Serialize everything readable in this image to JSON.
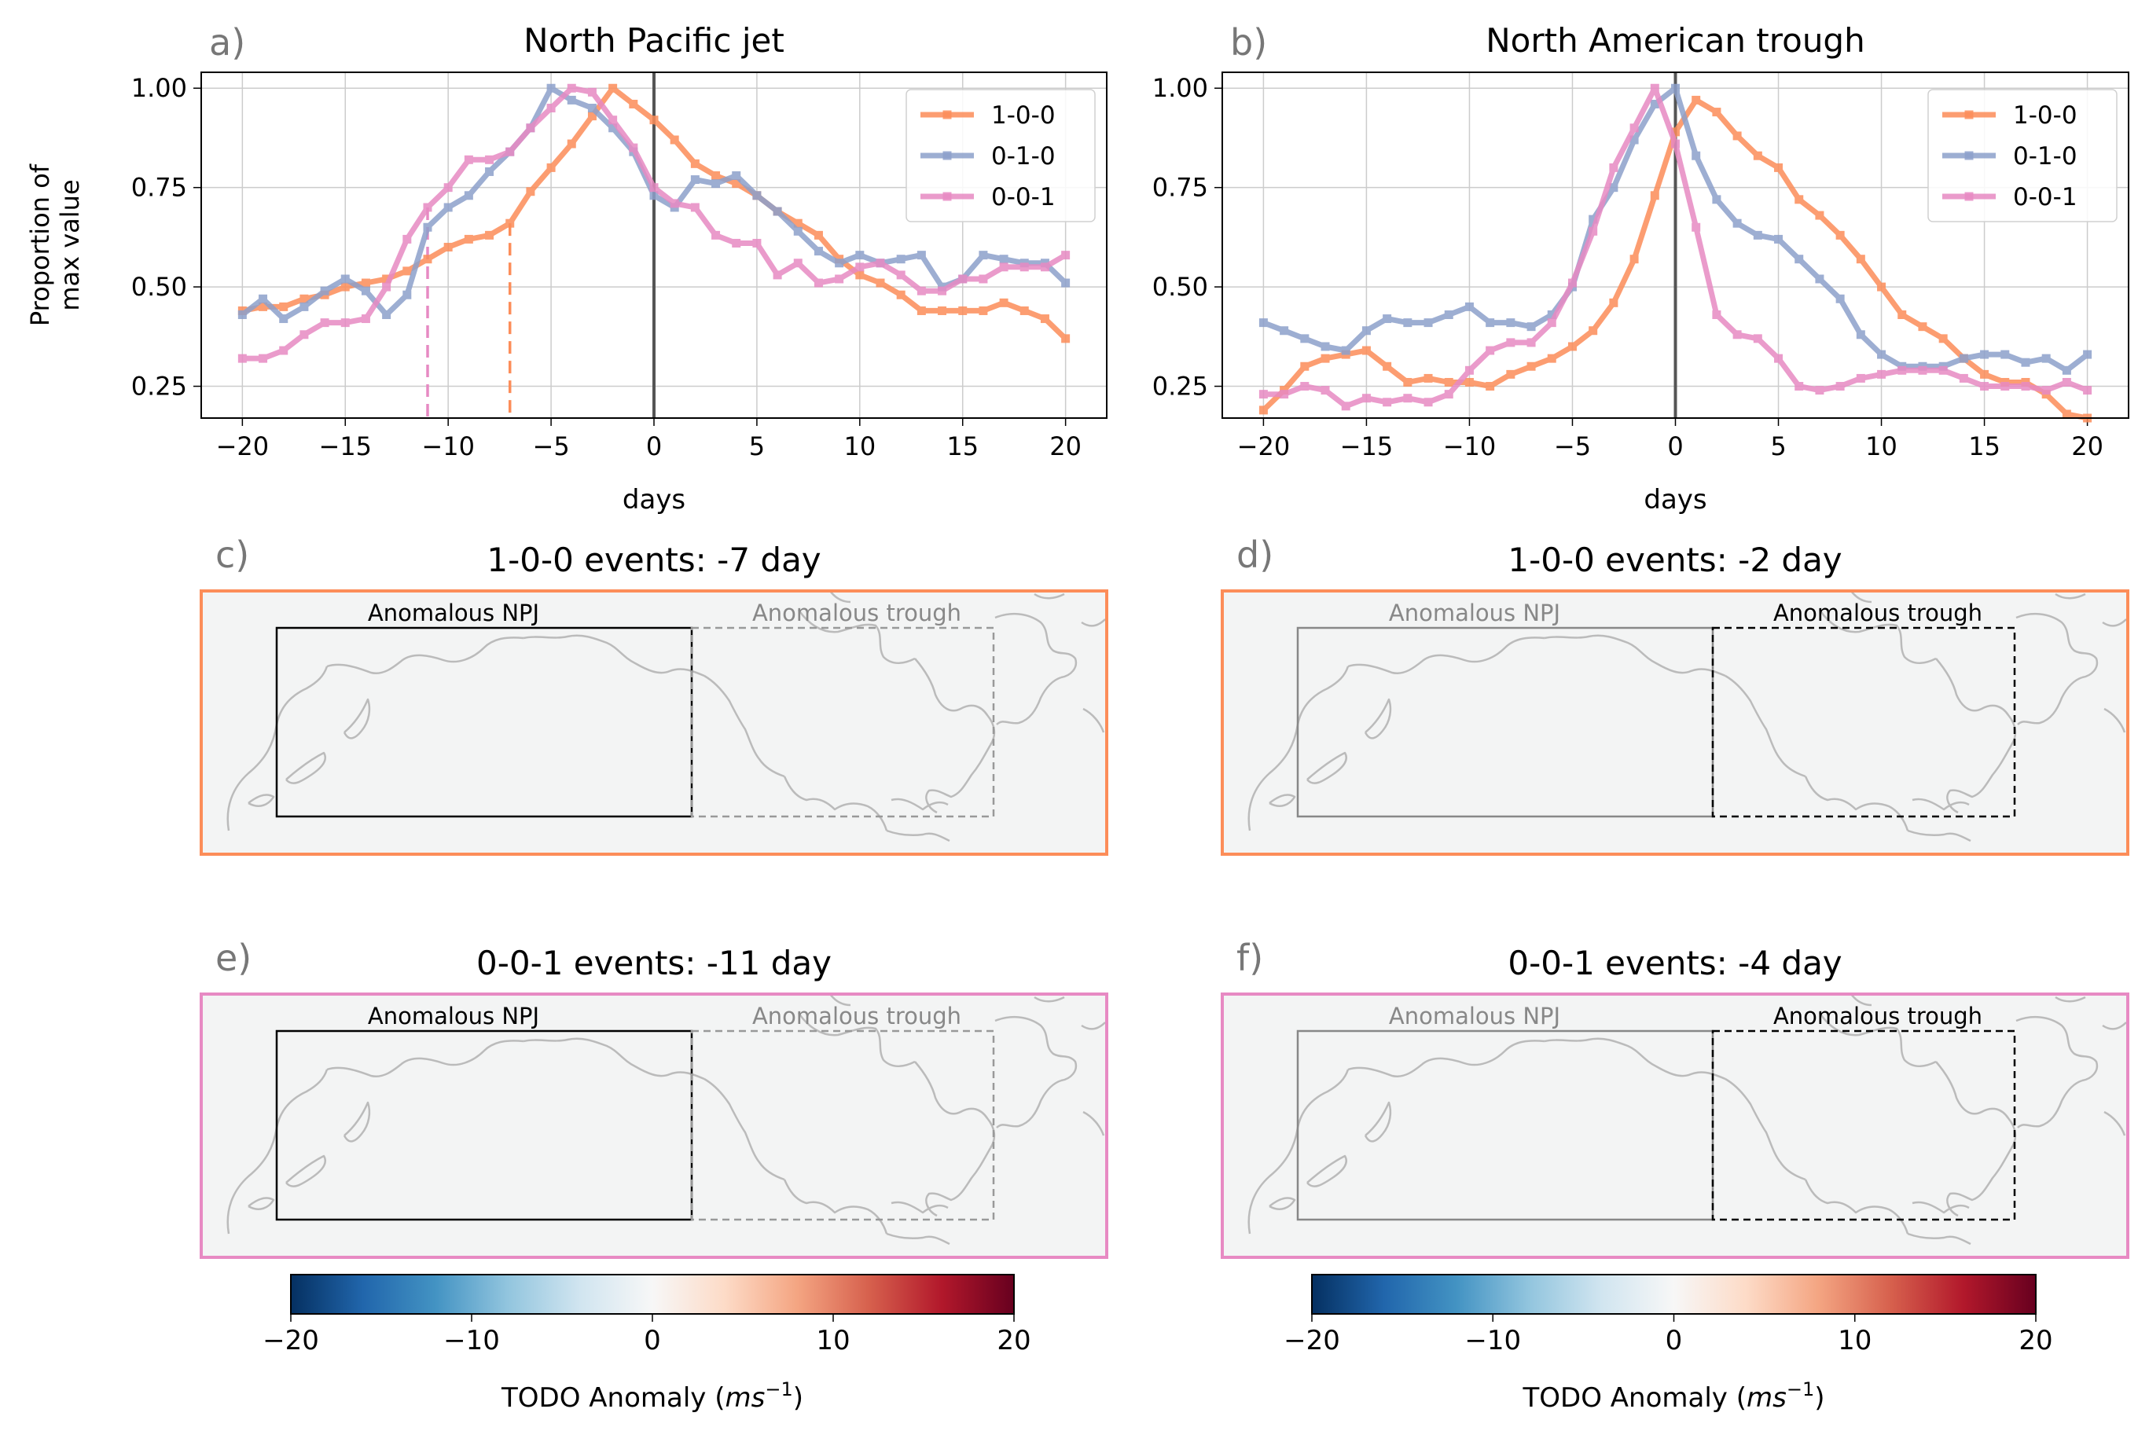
{
  "colors": {
    "s100": "#fc8d59",
    "s010": "#8da0cb",
    "s001": "#e78ac3",
    "zero_line": "#555555",
    "grid": "#cccccc",
    "land": "#f3f4f4",
    "coast": "#bbbbbb"
  },
  "chart_data": [
    {
      "panel_letter": "a)",
      "type": "line",
      "title": "North Pacific jet",
      "xlabel": "days",
      "ylabel": [
        "Proportion of",
        "max value"
      ],
      "xlim": [
        -22,
        22
      ],
      "ylim": [
        0.17,
        1.04
      ],
      "xticks": [
        -20,
        -15,
        -10,
        -5,
        0,
        5,
        10,
        15,
        20
      ],
      "xtick_labels": [
        "−20",
        "−15",
        "−10",
        "−5",
        "0",
        "5",
        "10",
        "15",
        "20"
      ],
      "yticks": [
        0.25,
        0.5,
        0.75,
        1.0
      ],
      "ytick_labels": [
        "0.25",
        "0.50",
        "0.75",
        "1.00"
      ],
      "grid": true,
      "legend_position": "upper-right",
      "x": [
        -20,
        -19,
        -18,
        -17,
        -16,
        -15,
        -14,
        -13,
        -12,
        -11,
        -10,
        -9,
        -8,
        -7,
        -6,
        -5,
        -4,
        -3,
        -2,
        -1,
        0,
        1,
        2,
        3,
        4,
        5,
        6,
        7,
        8,
        9,
        10,
        11,
        12,
        13,
        14,
        15,
        16,
        17,
        18,
        19,
        20
      ],
      "series": [
        {
          "name": "1-0-0",
          "color": "#fc8d59",
          "values": [
            0.44,
            0.45,
            0.45,
            0.47,
            0.48,
            0.5,
            0.51,
            0.52,
            0.54,
            0.57,
            0.6,
            0.62,
            0.63,
            0.66,
            0.74,
            0.8,
            0.86,
            0.93,
            1.0,
            0.96,
            0.92,
            0.87,
            0.81,
            0.78,
            0.76,
            0.73,
            0.69,
            0.66,
            0.63,
            0.57,
            0.53,
            0.51,
            0.48,
            0.44,
            0.44,
            0.44,
            0.44,
            0.46,
            0.44,
            0.42,
            0.37
          ]
        },
        {
          "name": "0-1-0",
          "color": "#8da0cb",
          "values": [
            0.43,
            0.47,
            0.42,
            0.45,
            0.49,
            0.52,
            0.49,
            0.43,
            0.48,
            0.65,
            0.7,
            0.73,
            0.79,
            0.84,
            0.9,
            1.0,
            0.97,
            0.95,
            0.9,
            0.84,
            0.73,
            0.7,
            0.77,
            0.76,
            0.78,
            0.73,
            0.69,
            0.64,
            0.59,
            0.56,
            0.58,
            0.56,
            0.57,
            0.58,
            0.5,
            0.52,
            0.58,
            0.57,
            0.56,
            0.56,
            0.51
          ]
        },
        {
          "name": "0-0-1",
          "color": "#e78ac3",
          "values": [
            0.32,
            0.32,
            0.34,
            0.38,
            0.41,
            0.41,
            0.42,
            0.5,
            0.62,
            0.7,
            0.75,
            0.82,
            0.82,
            0.84,
            0.9,
            0.95,
            1.0,
            0.99,
            0.92,
            0.85,
            0.75,
            0.71,
            0.7,
            0.63,
            0.61,
            0.61,
            0.53,
            0.56,
            0.51,
            0.52,
            0.55,
            0.56,
            0.53,
            0.49,
            0.49,
            0.52,
            0.52,
            0.55,
            0.55,
            0.55,
            0.58
          ]
        }
      ],
      "markers": [
        {
          "x": -11,
          "series": "0-0-1"
        },
        {
          "x": -7,
          "series": "1-0-0"
        }
      ]
    },
    {
      "panel_letter": "b)",
      "type": "line",
      "title": "North American trough",
      "xlabel": "days",
      "xlim": [
        -22,
        22
      ],
      "ylim": [
        0.17,
        1.04
      ],
      "xticks": [
        -20,
        -15,
        -10,
        -5,
        0,
        5,
        10,
        15,
        20
      ],
      "xtick_labels": [
        "−20",
        "−15",
        "−10",
        "−5",
        "0",
        "5",
        "10",
        "15",
        "20"
      ],
      "yticks": [
        0.25,
        0.5,
        0.75,
        1.0
      ],
      "ytick_labels": [
        "0.25",
        "0.50",
        "0.75",
        "1.00"
      ],
      "grid": true,
      "legend_position": "upper-right",
      "x": [
        -20,
        -19,
        -18,
        -17,
        -16,
        -15,
        -14,
        -13,
        -12,
        -11,
        -10,
        -9,
        -8,
        -7,
        -6,
        -5,
        -4,
        -3,
        -2,
        -1,
        0,
        1,
        2,
        3,
        4,
        5,
        6,
        7,
        8,
        9,
        10,
        11,
        12,
        13,
        14,
        15,
        16,
        17,
        18,
        19,
        20
      ],
      "series": [
        {
          "name": "1-0-0",
          "color": "#fc8d59",
          "values": [
            0.19,
            0.24,
            0.3,
            0.32,
            0.33,
            0.34,
            0.3,
            0.26,
            0.27,
            0.26,
            0.26,
            0.25,
            0.28,
            0.3,
            0.32,
            0.35,
            0.39,
            0.46,
            0.57,
            0.73,
            0.89,
            0.97,
            0.94,
            0.88,
            0.83,
            0.8,
            0.72,
            0.68,
            0.63,
            0.57,
            0.5,
            0.43,
            0.4,
            0.37,
            0.32,
            0.28,
            0.26,
            0.26,
            0.23,
            0.18,
            0.17
          ]
        },
        {
          "name": "0-1-0",
          "color": "#8da0cb",
          "values": [
            0.41,
            0.39,
            0.37,
            0.35,
            0.34,
            0.39,
            0.42,
            0.41,
            0.41,
            0.43,
            0.45,
            0.41,
            0.41,
            0.4,
            0.43,
            0.5,
            0.67,
            0.75,
            0.87,
            0.96,
            1.0,
            0.83,
            0.72,
            0.66,
            0.63,
            0.62,
            0.57,
            0.52,
            0.47,
            0.38,
            0.33,
            0.3,
            0.3,
            0.3,
            0.32,
            0.33,
            0.33,
            0.31,
            0.32,
            0.29,
            0.33
          ]
        },
        {
          "name": "0-0-1",
          "color": "#e78ac3",
          "values": [
            0.23,
            0.23,
            0.25,
            0.24,
            0.2,
            0.22,
            0.21,
            0.22,
            0.21,
            0.23,
            0.29,
            0.34,
            0.36,
            0.36,
            0.41,
            0.51,
            0.64,
            0.8,
            0.9,
            1.0,
            0.86,
            0.65,
            0.43,
            0.38,
            0.37,
            0.32,
            0.25,
            0.24,
            0.25,
            0.27,
            0.28,
            0.29,
            0.29,
            0.29,
            0.27,
            0.25,
            0.25,
            0.25,
            0.24,
            0.26,
            0.24
          ]
        }
      ]
    }
  ],
  "maps": [
    {
      "panel_letter": "c)",
      "title": "1-0-0 events: -7 day",
      "border_color": "#fc8d59",
      "label_left": "Anomalous NPJ",
      "label_right": "Anomalous trough",
      "highlight": "left"
    },
    {
      "panel_letter": "d)",
      "title": "1-0-0 events: -2 day",
      "border_color": "#fc8d59",
      "label_left": "Anomalous NPJ",
      "label_right": "Anomalous trough",
      "highlight": "right"
    },
    {
      "panel_letter": "e)",
      "title": "0-0-1 events: -11 day",
      "border_color": "#e78ac3",
      "label_left": "Anomalous NPJ",
      "label_right": "Anomalous trough",
      "highlight": "left"
    },
    {
      "panel_letter": "f)",
      "title": "0-0-1 events: -4 day",
      "border_color": "#e78ac3",
      "label_left": "Anomalous NPJ",
      "label_right": "Anomalous trough",
      "highlight": "right"
    }
  ],
  "colorbar": {
    "ticks": [
      -20,
      -10,
      0,
      10,
      20
    ],
    "tick_labels": [
      "−20",
      "−10",
      "0",
      "10",
      "20"
    ],
    "label_prefix": "TODO Anomaly (",
    "label_unit_base": "ms",
    "label_unit_exp": "−1",
    "label_suffix": ")",
    "colormap": "RdBu_r",
    "stops": [
      "#053061",
      "#2166ac",
      "#4393c3",
      "#92c5de",
      "#d1e5f0",
      "#f7f7f7",
      "#fddbc7",
      "#f4a582",
      "#d6604d",
      "#b2182b",
      "#67001f"
    ]
  }
}
